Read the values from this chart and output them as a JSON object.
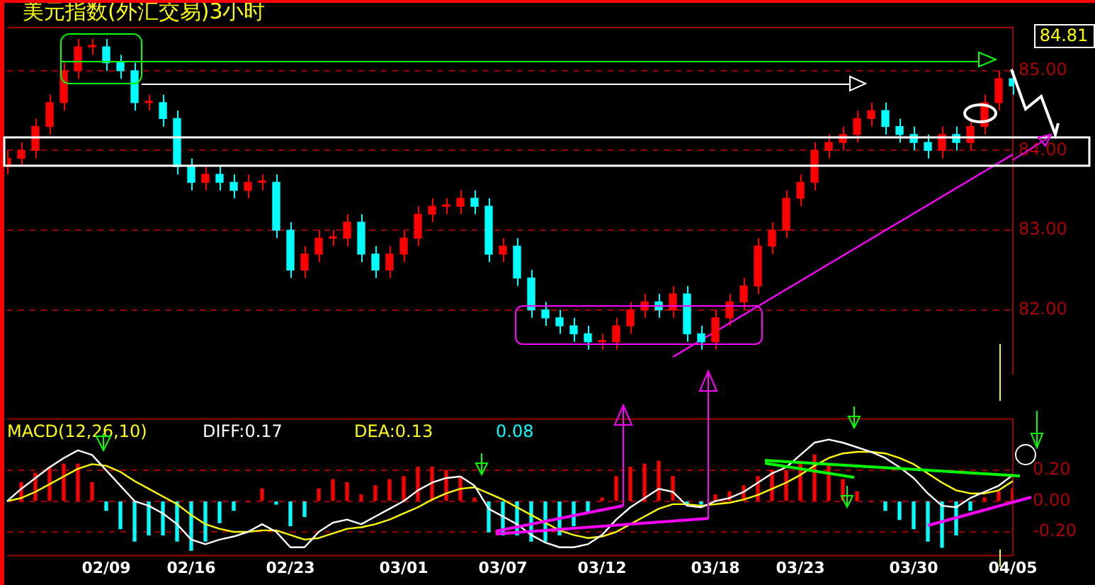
{
  "chart_data": [
    {
      "type": "candlestick",
      "title": "美元指数(外汇交易)3小时",
      "categories": [
        null,
        null,
        null,
        null,
        null,
        null,
        null,
        null,
        null,
        null,
        null,
        null,
        null,
        null,
        null,
        null,
        null,
        null,
        null,
        null,
        null,
        null,
        null,
        null,
        null,
        null,
        null,
        null,
        null,
        null,
        null,
        null,
        null,
        null,
        null,
        null,
        null,
        null,
        null,
        null,
        null,
        null,
        null,
        null,
        null,
        null,
        null,
        null,
        null,
        null,
        null,
        null,
        null,
        null,
        null,
        null,
        null,
        null,
        null,
        null,
        null,
        null,
        null,
        null,
        null,
        null,
        null,
        null,
        null,
        null,
        null,
        null
      ],
      "series": [
        {
          "type": "line",
          "color": "#ff00ff",
          "values": [
            null,
            null,
            null,
            null,
            null,
            null,
            null,
            null,
            null,
            null,
            null,
            null,
            null,
            null,
            null,
            null,
            null,
            null,
            null,
            null,
            null,
            null,
            null,
            null,
            null,
            null,
            null,
            null,
            null,
            null,
            null,
            null,
            null,
            null,
            null,
            null,
            null,
            null,
            null,
            null,
            null,
            null,
            null,
            null,
            null,
            null,
            null,
            81.41,
            null,
            null,
            null,
            null,
            null,
            null,
            null,
            null,
            null,
            null,
            null,
            null,
            null,
            null,
            null,
            null,
            null,
            null,
            null,
            null,
            null,
            null,
            null,
            83.95
          ]
        }
      ],
      "ref_lines": [
        {
          "axis": "y",
          "value": 85.12,
          "color": "#00ff00"
        },
        {
          "axis": "y",
          "value": 84.84,
          "color": "#ffffff"
        }
      ],
      "ohlc": [
        [
          83.8,
          84.0,
          83.7,
          83.9
        ],
        [
          83.9,
          84.1,
          83.8,
          84.0
        ],
        [
          84.0,
          84.4,
          83.9,
          84.3
        ],
        [
          84.3,
          84.7,
          84.2,
          84.6
        ],
        [
          84.6,
          85.1,
          84.5,
          85.0
        ],
        [
          85.0,
          85.4,
          84.9,
          85.3
        ],
        [
          85.3,
          85.4,
          85.2,
          85.3
        ],
        [
          85.3,
          85.4,
          85.0,
          85.1
        ],
        [
          85.1,
          85.2,
          84.9,
          85.0
        ],
        [
          85.0,
          85.1,
          84.5,
          84.6
        ],
        [
          84.6,
          84.7,
          84.5,
          84.6
        ],
        [
          84.6,
          84.7,
          84.3,
          84.4
        ],
        [
          84.4,
          84.5,
          83.7,
          83.8
        ],
        [
          83.8,
          83.9,
          83.5,
          83.6
        ],
        [
          83.6,
          83.8,
          83.5,
          83.7
        ],
        [
          83.7,
          83.8,
          83.5,
          83.6
        ],
        [
          83.6,
          83.7,
          83.4,
          83.5
        ],
        [
          83.5,
          83.7,
          83.4,
          83.6
        ],
        [
          83.6,
          83.7,
          83.5,
          83.6
        ],
        [
          83.6,
          83.7,
          82.9,
          83.0
        ],
        [
          83.0,
          83.1,
          82.4,
          82.5
        ],
        [
          82.5,
          82.8,
          82.4,
          82.7
        ],
        [
          82.7,
          83.0,
          82.6,
          82.9
        ],
        [
          82.9,
          83.0,
          82.8,
          82.9
        ],
        [
          82.9,
          83.2,
          82.8,
          83.1
        ],
        [
          83.1,
          83.2,
          82.6,
          82.7
        ],
        [
          82.7,
          82.8,
          82.4,
          82.5
        ],
        [
          82.5,
          82.8,
          82.4,
          82.7
        ],
        [
          82.7,
          83.0,
          82.6,
          82.9
        ],
        [
          82.9,
          83.3,
          82.8,
          83.2
        ],
        [
          83.2,
          83.4,
          83.1,
          83.3
        ],
        [
          83.3,
          83.4,
          83.2,
          83.3
        ],
        [
          83.3,
          83.5,
          83.2,
          83.4
        ],
        [
          83.4,
          83.5,
          83.2,
          83.3
        ],
        [
          83.3,
          83.4,
          82.6,
          82.7
        ],
        [
          82.7,
          82.9,
          82.6,
          82.8
        ],
        [
          82.8,
          82.9,
          82.3,
          82.4
        ],
        [
          82.4,
          82.5,
          81.9,
          82.0
        ],
        [
          82.0,
          82.1,
          81.8,
          81.9
        ],
        [
          81.9,
          82.0,
          81.7,
          81.8
        ],
        [
          81.8,
          81.9,
          81.6,
          81.7
        ],
        [
          81.7,
          81.8,
          81.5,
          81.6
        ],
        [
          81.6,
          81.7,
          81.5,
          81.6
        ],
        [
          81.6,
          81.9,
          81.5,
          81.8
        ],
        [
          81.8,
          82.1,
          81.7,
          82.0
        ],
        [
          82.0,
          82.2,
          81.9,
          82.1
        ],
        [
          82.1,
          82.2,
          81.9,
          82.0
        ],
        [
          82.0,
          82.3,
          81.9,
          82.2
        ],
        [
          82.2,
          82.3,
          81.6,
          81.7
        ],
        [
          81.7,
          81.8,
          81.5,
          81.6
        ],
        [
          81.6,
          82.0,
          81.5,
          81.9
        ],
        [
          81.9,
          82.2,
          81.8,
          82.1
        ],
        [
          82.1,
          82.4,
          82.0,
          82.3
        ],
        [
          82.3,
          82.9,
          82.2,
          82.8
        ],
        [
          82.8,
          83.1,
          82.7,
          83.0
        ],
        [
          83.0,
          83.5,
          82.9,
          83.4
        ],
        [
          83.4,
          83.7,
          83.3,
          83.6
        ],
        [
          83.6,
          84.1,
          83.5,
          84.0
        ],
        [
          84.0,
          84.2,
          83.9,
          84.1
        ],
        [
          84.1,
          84.3,
          84.0,
          84.2
        ],
        [
          84.2,
          84.5,
          84.1,
          84.4
        ],
        [
          84.4,
          84.6,
          84.3,
          84.5
        ],
        [
          84.5,
          84.6,
          84.2,
          84.3
        ],
        [
          84.3,
          84.4,
          84.1,
          84.2
        ],
        [
          84.2,
          84.3,
          84.0,
          84.1
        ],
        [
          84.1,
          84.2,
          83.9,
          84.0
        ],
        [
          84.0,
          84.3,
          83.9,
          84.2
        ],
        [
          84.2,
          84.3,
          84.0,
          84.1
        ],
        [
          84.1,
          84.4,
          84.0,
          84.3
        ],
        [
          84.3,
          84.7,
          84.2,
          84.6
        ],
        [
          84.6,
          85.0,
          84.5,
          84.9
        ],
        [
          84.9,
          85.0,
          84.7,
          84.81
        ]
      ],
      "colors": [
        "#ff0000",
        "#ff0000",
        "#ff0000",
        "#ff0000",
        "#ff0000",
        "#ff0000",
        "#ff0000",
        "#00ffff",
        "#00ffff",
        "#00ffff",
        "#ff0000",
        "#00ffff",
        "#00ffff",
        "#00ffff",
        "#ff0000",
        "#00ffff",
        "#00ffff",
        "#ff0000",
        "#ff0000",
        "#00ffff",
        "#00ffff",
        "#ff0000",
        "#ff0000",
        "#ff0000",
        "#ff0000",
        "#00ffff",
        "#00ffff",
        "#ff0000",
        "#ff0000",
        "#ff0000",
        "#ff0000",
        "#ff0000",
        "#ff0000",
        "#00ffff",
        "#00ffff",
        "#ff0000",
        "#00ffff",
        "#00ffff",
        "#00ffff",
        "#00ffff",
        "#00ffff",
        "#00ffff",
        "#ff0000",
        "#ff0000",
        "#ff0000",
        "#ff0000",
        "#00ffff",
        "#ff0000",
        "#00ffff",
        "#00ffff",
        "#ff0000",
        "#ff0000",
        "#ff0000",
        "#ff0000",
        "#ff0000",
        "#ff0000",
        "#ff0000",
        "#ff0000",
        "#ff0000",
        "#ff0000",
        "#ff0000",
        "#ff0000",
        "#00ffff",
        "#00ffff",
        "#00ffff",
        "#00ffff",
        "#ff0000",
        "#00ffff",
        "#ff0000",
        "#ff0000",
        "#ff0000",
        "#00ffff"
      ],
      "ylim": [
        81.2,
        85.55
      ],
      "yticks": [
        {
          "value": 82,
          "label": "82.00"
        },
        {
          "value": 83,
          "label": "83.00"
        },
        {
          "value": 84,
          "label": "84.00"
        },
        {
          "value": 85,
          "label": "85.00"
        }
      ],
      "grid": "y",
      "legend": false,
      "tick_labels": "y",
      "marker": "none",
      "annotations": [
        "84.81"
      ]
    },
    {
      "type": "bar",
      "categories": [
        null,
        null,
        null,
        null,
        null,
        null,
        null,
        "02/09",
        null,
        null,
        null,
        null,
        null,
        "02/16",
        null,
        null,
        null,
        null,
        null,
        null,
        "02/23",
        null,
        null,
        null,
        null,
        null,
        null,
        null,
        "03/01",
        null,
        null,
        null,
        null,
        null,
        null,
        "03/07",
        null,
        null,
        null,
        null,
        null,
        null,
        "03/12",
        null,
        null,
        null,
        null,
        null,
        null,
        null,
        "03/18",
        null,
        null,
        null,
        null,
        null,
        "03/23",
        null,
        null,
        null,
        null,
        null,
        null,
        null,
        "03/30",
        null,
        null,
        null,
        null,
        null,
        null,
        "04/05"
      ],
      "series": [
        {
          "type": "bar",
          "values": [
            0,
            0.12,
            0.18,
            0.22,
            0.24,
            0.24,
            0.12,
            -0.06,
            -0.18,
            -0.26,
            -0.22,
            -0.22,
            -0.26,
            -0.32,
            -0.26,
            -0.14,
            -0.06,
            0,
            0.08,
            -0.02,
            -0.16,
            -0.1,
            0.08,
            0.14,
            0.12,
            0.04,
            0.1,
            0.14,
            0.16,
            0.22,
            0.22,
            0.2,
            0.16,
            0.02,
            -0.2,
            -0.22,
            -0.22,
            -0.26,
            -0.26,
            -0.22,
            -0.16,
            -0.08,
            0.02,
            0.16,
            0.22,
            0.24,
            0.26,
            0.16,
            -0.02,
            -0.02,
            0.04,
            0.06,
            0.1,
            0.16,
            0.2,
            0.2,
            0.26,
            0.3,
            0.24,
            0.14,
            0.06,
            0,
            -0.06,
            -0.12,
            -0.18,
            -0.26,
            -0.3,
            -0.22,
            -0.06,
            0.02,
            0.06,
            0.08
          ],
          "colors": [
            "#ff0000",
            "#ff0000",
            "#ff0000",
            "#ff0000",
            "#ff0000",
            "#ff0000",
            "#ff0000",
            "#00ffff",
            "#00ffff",
            "#00ffff",
            "#00ffff",
            "#00ffff",
            "#00ffff",
            "#00ffff",
            "#00ffff",
            "#00ffff",
            "#00ffff",
            "#ff0000",
            "#ff0000",
            "#00ffff",
            "#00ffff",
            "#00ffff",
            "#ff0000",
            "#ff0000",
            "#ff0000",
            "#ff0000",
            "#ff0000",
            "#ff0000",
            "#ff0000",
            "#ff0000",
            "#ff0000",
            "#ff0000",
            "#ff0000",
            "#ff0000",
            "#00ffff",
            "#00ffff",
            "#00ffff",
            "#00ffff",
            "#00ffff",
            "#00ffff",
            "#00ffff",
            "#00ffff",
            "#ff0000",
            "#ff0000",
            "#ff0000",
            "#ff0000",
            "#ff0000",
            "#ff0000",
            "#00ffff",
            "#00ffff",
            "#ff0000",
            "#ff0000",
            "#ff0000",
            "#ff0000",
            "#ff0000",
            "#ff0000",
            "#ff0000",
            "#ff0000",
            "#ff0000",
            "#ff0000",
            "#ff0000",
            "#ff0000",
            "#00ffff",
            "#00ffff",
            "#00ffff",
            "#00ffff",
            "#00ffff",
            "#00ffff",
            "#00ffff",
            "#ff0000",
            "#ff0000",
            "#ff0000"
          ]
        },
        {
          "type": "line",
          "color": "#ffffff",
          "values": [
            0,
            0.08,
            0.15,
            0.22,
            0.28,
            0.33,
            0.3,
            0.2,
            0.1,
            0,
            -0.03,
            -0.08,
            -0.15,
            -0.25,
            -0.28,
            -0.25,
            -0.23,
            -0.2,
            -0.15,
            -0.2,
            -0.3,
            -0.3,
            -0.2,
            -0.14,
            -0.12,
            -0.15,
            -0.1,
            -0.05,
            0,
            0.07,
            0.12,
            0.15,
            0.16,
            0.1,
            -0.05,
            -0.1,
            -0.15,
            -0.22,
            -0.27,
            -0.3,
            -0.3,
            -0.28,
            -0.22,
            -0.12,
            -0.04,
            0.02,
            0.08,
            0.06,
            -0.03,
            -0.04,
            0,
            0.02,
            0.06,
            0.12,
            0.18,
            0.22,
            0.3,
            0.38,
            0.4,
            0.38,
            0.35,
            0.32,
            0.28,
            0.22,
            0.15,
            0.05,
            -0.03,
            -0.04,
            0.02,
            0.06,
            0.1,
            0.17
          ]
        },
        {
          "type": "line",
          "color": "#ffff00",
          "values": [
            0,
            0.02,
            0.06,
            0.11,
            0.16,
            0.21,
            0.24,
            0.23,
            0.19,
            0.13,
            0.08,
            0.03,
            -0.02,
            -0.09,
            -0.15,
            -0.18,
            -0.2,
            -0.2,
            -0.19,
            -0.19,
            -0.22,
            -0.25,
            -0.24,
            -0.21,
            -0.18,
            -0.17,
            -0.15,
            -0.12,
            -0.08,
            -0.04,
            0.01,
            0.05,
            0.08,
            0.09,
            0.05,
            0.01,
            -0.04,
            -0.09,
            -0.14,
            -0.19,
            -0.22,
            -0.24,
            -0.23,
            -0.2,
            -0.15,
            -0.1,
            -0.05,
            -0.02,
            -0.02,
            -0.03,
            -0.02,
            -0.01,
            0.01,
            0.04,
            0.08,
            0.12,
            0.17,
            0.23,
            0.28,
            0.31,
            0.32,
            0.32,
            0.31,
            0.28,
            0.24,
            0.18,
            0.12,
            0.07,
            0.05,
            0.05,
            0.07,
            0.13
          ]
        }
      ],
      "ylim": [
        -0.35,
        0.53
      ],
      "yticks": [
        {
          "value": -0.2,
          "label": "-0.20"
        },
        {
          "value": 0,
          "label": "0.00"
        },
        {
          "value": 0.2,
          "label": "0.20"
        }
      ],
      "grid": "y",
      "legend": false,
      "marker": "none",
      "annotations": [
        "MACD(12,26,10)",
        "DIFF:0.17",
        "DEA:0.13",
        "0.08"
      ]
    }
  ]
}
